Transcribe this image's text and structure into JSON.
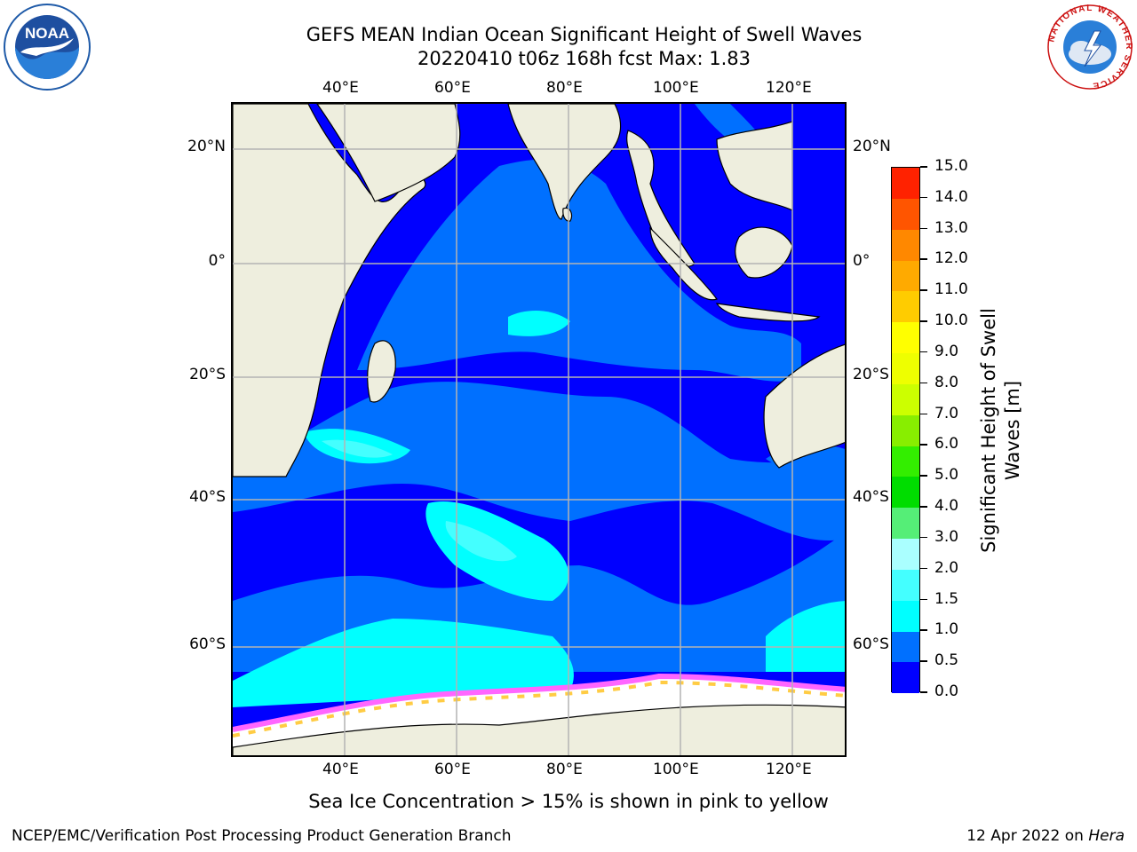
{
  "title_line1": "GEFS MEAN Indian Ocean Significant Height of Swell Waves",
  "title_line2": "20220410 t06z 168h fcst   Max: 1.83",
  "logos": {
    "left": "NOAA",
    "left_ring_text": "NATIONAL OCEANIC AND ATMOSPHERIC ADMINISTRATION · U.S. DEPARTMENT OF COMMERCE",
    "right_ring_text": "NATIONAL WEATHER SERVICE"
  },
  "map": {
    "lon_ticks": [
      "40°E",
      "60°E",
      "80°E",
      "100°E",
      "120°E"
    ],
    "lat_ticks_left": [
      "20°N",
      "0°",
      "20°S",
      "40°S",
      "60°S"
    ],
    "lat_ticks_right": [
      "20°N",
      "0°",
      "20°S",
      "40°S",
      "60°S"
    ],
    "gridlines": true,
    "colors": {
      "land": "#eeeede",
      "grid": "#b4b4b4",
      "ice_low": "#ff66ff",
      "ice_high": "#ffcc44",
      "ice_shelf": "#ffffff"
    }
  },
  "colorbar": {
    "levels": [
      "0.0",
      "0.5",
      "1.0",
      "1.5",
      "2.0",
      "3.0",
      "4.0",
      "5.0",
      "6.0",
      "7.0",
      "8.0",
      "9.0",
      "10.0",
      "11.0",
      "12.0",
      "13.0",
      "14.0",
      "15.0"
    ],
    "colors": [
      "#0000ff",
      "#0070ff",
      "#00ffff",
      "#44ffff",
      "#aaffff",
      "#55ee77",
      "#00dd00",
      "#33ee00",
      "#88ee00",
      "#ccff00",
      "#eeff00",
      "#ffff00",
      "#ffcc00",
      "#ffaa00",
      "#ff8800",
      "#ff5500",
      "#ff2200"
    ],
    "label": "Significant Height of Swell Waves [m]"
  },
  "caption": "Sea Ice Concentration > 15% is shown in pink to yellow",
  "footer_left": "NCEP/EMC/Verification Post Processing Product Generation Branch",
  "footer_right_prefix": "12 Apr 2022 on ",
  "footer_right_host": "Hera"
}
